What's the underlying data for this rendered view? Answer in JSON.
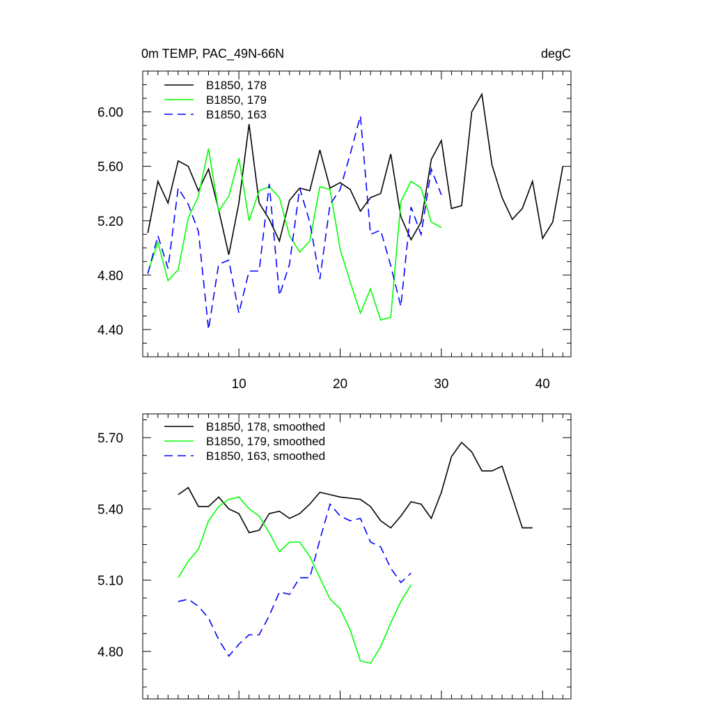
{
  "chart_data": [
    {
      "type": "line",
      "title_left": "0m TEMP, PAC_49N-66N",
      "title_right": "degC",
      "xlim": [
        0.5,
        42.8
      ],
      "ylim": [
        4.2,
        6.3
      ],
      "x_ticks": [
        10,
        20,
        30,
        40
      ],
      "y_ticks": [
        4.4,
        4.8,
        5.2,
        5.6,
        6.0
      ],
      "y_tick_labels": [
        "4.40",
        "4.80",
        "5.20",
        "5.60",
        "6.00"
      ],
      "grid": false,
      "legend_placement": "top-left",
      "series": [
        {
          "name": "B1850, 178",
          "color": "#000000",
          "dash": "solid",
          "x": [
            1,
            2,
            3,
            4,
            5,
            6,
            7,
            8,
            9,
            10,
            11,
            12,
            13,
            14,
            15,
            16,
            17,
            18,
            19,
            20,
            21,
            22,
            23,
            24,
            25,
            26,
            27,
            28,
            29,
            30,
            31,
            32,
            33,
            34,
            35,
            36,
            37,
            38,
            39,
            40,
            41,
            42
          ],
          "values": [
            5.11,
            5.49,
            5.33,
            5.64,
            5.6,
            5.42,
            5.58,
            5.28,
            4.95,
            5.33,
            5.91,
            5.33,
            5.21,
            5.05,
            5.35,
            5.44,
            5.42,
            5.72,
            5.44,
            5.48,
            5.43,
            5.27,
            5.37,
            5.4,
            5.69,
            5.23,
            5.06,
            5.19,
            5.65,
            5.79,
            5.29,
            5.31,
            6.0,
            6.13,
            5.61,
            5.37,
            5.21,
            5.29,
            5.49,
            5.07,
            5.19,
            5.6
          ]
        },
        {
          "name": "B1850, 179",
          "color": "#00ff00",
          "dash": "solid",
          "x": [
            1,
            2,
            3,
            4,
            5,
            6,
            7,
            8,
            9,
            10,
            11,
            12,
            13,
            14,
            15,
            16,
            17,
            18,
            19,
            20,
            21,
            22,
            23,
            24,
            25,
            26,
            27,
            28,
            29,
            30
          ],
          "values": [
            4.82,
            5.04,
            4.76,
            4.84,
            5.22,
            5.38,
            5.73,
            5.27,
            5.38,
            5.66,
            5.2,
            5.42,
            5.45,
            5.37,
            5.09,
            4.97,
            5.05,
            5.45,
            5.43,
            4.99,
            4.75,
            4.52,
            4.7,
            4.47,
            4.49,
            5.34,
            5.49,
            5.44,
            5.19,
            5.15
          ]
        },
        {
          "name": "B1850, 163",
          "color": "#0000ff",
          "dash": "dashed",
          "x": [
            1,
            2,
            3,
            4,
            5,
            6,
            7,
            8,
            9,
            10,
            11,
            12,
            13,
            14,
            15,
            16,
            17,
            18,
            19,
            20,
            21,
            22,
            23,
            24,
            25,
            26,
            27,
            28,
            29,
            30
          ],
          "values": [
            4.81,
            5.09,
            4.85,
            5.44,
            5.32,
            5.12,
            4.4,
            4.88,
            4.91,
            4.52,
            4.83,
            4.83,
            5.47,
            4.65,
            4.88,
            5.44,
            5.19,
            4.77,
            5.32,
            5.43,
            5.69,
            5.97,
            5.1,
            5.13,
            4.87,
            4.57,
            5.3,
            5.1,
            5.58,
            5.39
          ]
        }
      ]
    },
    {
      "type": "line",
      "xlim": [
        0.5,
        42.8
      ],
      "ylim": [
        4.6,
        5.8
      ],
      "x_ticks": [
        10,
        20,
        30,
        40
      ],
      "y_ticks": [
        4.8,
        5.1,
        5.4,
        5.7
      ],
      "y_tick_labels": [
        "4.80",
        "5.10",
        "5.40",
        "5.70"
      ],
      "grid": false,
      "legend_placement": "top-left",
      "series": [
        {
          "name": "B1850, 178, smoothed",
          "color": "#000000",
          "dash": "solid",
          "x": [
            4,
            5,
            6,
            7,
            8,
            9,
            10,
            11,
            12,
            13,
            14,
            15,
            16,
            17,
            18,
            19,
            20,
            21,
            22,
            23,
            24,
            25,
            26,
            27,
            28,
            29,
            30,
            31,
            32,
            33,
            34,
            35,
            36,
            37,
            38,
            39
          ],
          "values": [
            5.46,
            5.49,
            5.41,
            5.41,
            5.45,
            5.4,
            5.38,
            5.3,
            5.31,
            5.38,
            5.39,
            5.36,
            5.38,
            5.42,
            5.47,
            5.46,
            5.45,
            5.445,
            5.44,
            5.41,
            5.35,
            5.32,
            5.37,
            5.43,
            5.42,
            5.36,
            5.47,
            5.62,
            5.68,
            5.64,
            5.56,
            5.56,
            5.58,
            5.45,
            5.32,
            5.32
          ]
        },
        {
          "name": "B1850, 179, smoothed",
          "color": "#00ff00",
          "dash": "solid",
          "x": [
            4,
            5,
            6,
            7,
            8,
            9,
            10,
            11,
            12,
            13,
            14,
            15,
            16,
            17,
            18,
            19,
            20,
            21,
            22,
            23,
            24,
            25,
            26,
            27
          ],
          "values": [
            5.11,
            5.18,
            5.23,
            5.35,
            5.41,
            5.44,
            5.45,
            5.4,
            5.37,
            5.3,
            5.22,
            5.26,
            5.26,
            5.2,
            5.11,
            5.02,
            4.98,
            4.89,
            4.76,
            4.75,
            4.82,
            4.92,
            5.01,
            5.08
          ]
        },
        {
          "name": "B1850, 163, smoothed",
          "color": "#0000ff",
          "dash": "dashed",
          "x": [
            4,
            5,
            6,
            7,
            8,
            9,
            10,
            11,
            12,
            13,
            14,
            15,
            16,
            17,
            18,
            19,
            20,
            21,
            22,
            23,
            24,
            25,
            26,
            27
          ],
          "values": [
            5.01,
            5.02,
            4.99,
            4.94,
            4.85,
            4.78,
            4.83,
            4.87,
            4.87,
            4.95,
            5.05,
            5.04,
            5.11,
            5.11,
            5.27,
            5.42,
            5.37,
            5.35,
            5.36,
            5.26,
            5.24,
            5.15,
            5.09,
            5.13
          ]
        }
      ]
    }
  ]
}
